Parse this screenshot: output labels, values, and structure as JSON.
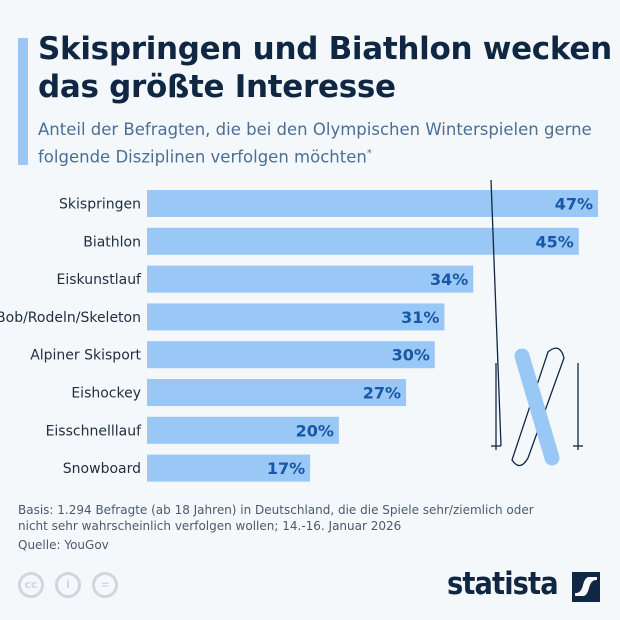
{
  "title": "Skispringen und Biathlon wecken das größte Interesse",
  "subtitle": "Anteil der Befragten, die bei den Olympischen Winterspielen gerne folgende Disziplinen verfolgen möchten",
  "subtitle_mark": "*",
  "chart_data": {
    "type": "bar",
    "orientation": "horizontal",
    "categories": [
      "Skispringen",
      "Biathlon",
      "Eiskunstlauf",
      "Bob/Rodeln/Skeleton",
      "Alpiner Skisport",
      "Eishockey",
      "Eisschnelllauf",
      "Snowboard"
    ],
    "values": [
      47,
      45,
      34,
      31,
      30,
      27,
      20,
      17
    ],
    "value_labels": [
      "47%",
      "45%",
      "34%",
      "31%",
      "30%",
      "27%",
      "20%",
      "17%"
    ],
    "unit": "%",
    "bar_color": "#9ac8f6",
    "label_color": "#1757a6",
    "grid": false
  },
  "footnote": "Basis: 1.294 Befragte (ab 18 Jahren) in Deutschland, die die Spiele sehr/ziemlich oder nicht sehr wahrscheinlich verfolgen wollen; 14.-16. Januar 2026",
  "source": "Quelle: YouGov",
  "brand": "statista",
  "license_icons": [
    "cc-icon",
    "by-icon",
    "nd-icon"
  ]
}
